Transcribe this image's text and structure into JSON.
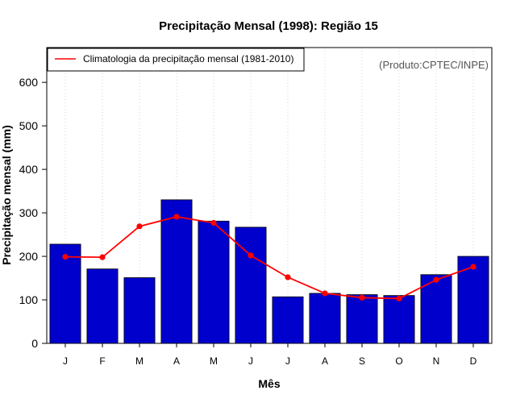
{
  "chart_data": {
    "type": "bar",
    "title": "Precipitação Mensal (1998): Região 15",
    "xlabel": "Mês",
    "ylabel": "Precipitação mensal (mm)",
    "source": "(Produto:CPTEC/INPE)",
    "categories": [
      "J",
      "F",
      "M",
      "A",
      "M",
      "J",
      "J",
      "A",
      "S",
      "O",
      "N",
      "D"
    ],
    "ylim": [
      0,
      680
    ],
    "yticks": [
      0,
      100,
      200,
      300,
      400,
      500,
      600
    ],
    "grid": "vertical-dotted",
    "legend_position": "top-left",
    "series": [
      {
        "name": "Precipitação mensal 1998",
        "kind": "bar",
        "color": "#0000CD",
        "values": [
          228,
          171,
          151,
          330,
          281,
          267,
          107,
          115,
          112,
          110,
          158,
          200
        ]
      },
      {
        "name": "Climatologia da precipitação mensal (1981-2010)",
        "kind": "line",
        "color": "#FF0000",
        "values": [
          199,
          198,
          269,
          291,
          277,
          202,
          152,
          115,
          105,
          103,
          146,
          176
        ]
      }
    ]
  }
}
